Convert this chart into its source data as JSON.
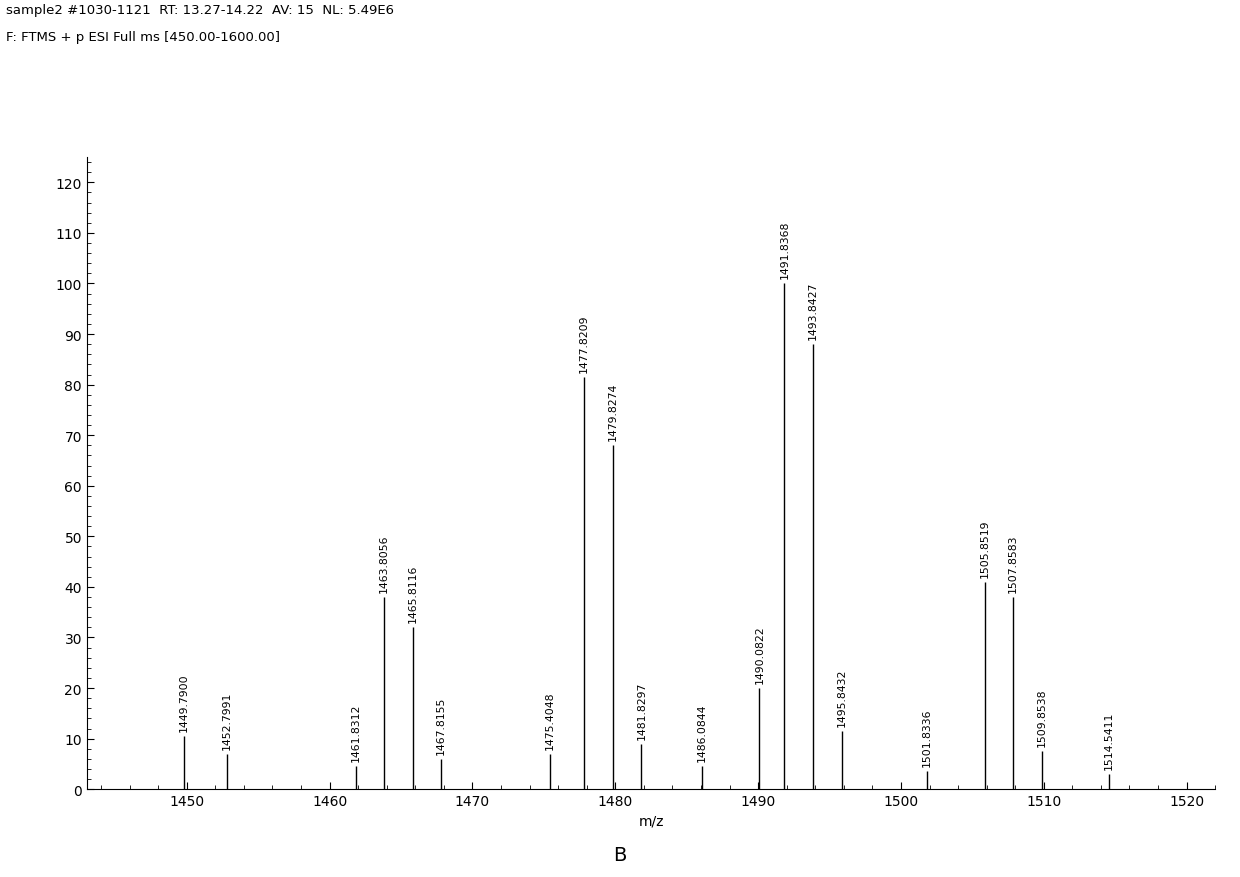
{
  "title_line1": "sample2 #1030-1121  RT: 13.27-14.22  AV: 15  NL: 5.49E6",
  "title_line2": "F: FTMS + p ESI Full ms [450.00-1600.00]",
  "xlabel": "m/z",
  "ylabel": "",
  "xlim": [
    1443,
    1522
  ],
  "ylim": [
    0,
    125
  ],
  "yticks": [
    0,
    10,
    20,
    30,
    40,
    50,
    60,
    70,
    80,
    90,
    100,
    110,
    120
  ],
  "xticks": [
    1450,
    1460,
    1470,
    1480,
    1490,
    1500,
    1510,
    1520
  ],
  "label_B": "B",
  "peaks": [
    {
      "mz": 1449.79,
      "intensity": 10.5,
      "label": "1449.7900"
    },
    {
      "mz": 1452.7991,
      "intensity": 7.0,
      "label": "1452.7991"
    },
    {
      "mz": 1461.8312,
      "intensity": 4.5,
      "label": "1461.8312"
    },
    {
      "mz": 1463.8056,
      "intensity": 38.0,
      "label": "1463.8056"
    },
    {
      "mz": 1465.8116,
      "intensity": 32.0,
      "label": "1465.8116"
    },
    {
      "mz": 1467.8155,
      "intensity": 6.0,
      "label": "1467.8155"
    },
    {
      "mz": 1475.4048,
      "intensity": 7.0,
      "label": "1475.4048"
    },
    {
      "mz": 1477.8209,
      "intensity": 81.5,
      "label": "1477.8209"
    },
    {
      "mz": 1479.8274,
      "intensity": 68.0,
      "label": "1479.8274"
    },
    {
      "mz": 1481.8297,
      "intensity": 9.0,
      "label": "1481.8297"
    },
    {
      "mz": 1486.0844,
      "intensity": 4.5,
      "label": "1486.0844"
    },
    {
      "mz": 1490.0822,
      "intensity": 20.0,
      "label": "1490.0822"
    },
    {
      "mz": 1491.8368,
      "intensity": 100.0,
      "label": "1491.8368"
    },
    {
      "mz": 1493.8427,
      "intensity": 88.0,
      "label": "1493.8427"
    },
    {
      "mz": 1495.8432,
      "intensity": 11.5,
      "label": "1495.8432"
    },
    {
      "mz": 1501.8336,
      "intensity": 3.5,
      "label": "1501.8336"
    },
    {
      "mz": 1505.8519,
      "intensity": 41.0,
      "label": "1505.8519"
    },
    {
      "mz": 1507.8583,
      "intensity": 38.0,
      "label": "1507.8583"
    },
    {
      "mz": 1509.8538,
      "intensity": 7.5,
      "label": "1509.8538"
    },
    {
      "mz": 1514.5411,
      "intensity": 3.0,
      "label": "1514.5411"
    }
  ],
  "background_color": "#ffffff",
  "line_color": "#000000",
  "label_fontsize": 7.8,
  "axis_fontsize": 10,
  "header_fontsize": 9.5
}
